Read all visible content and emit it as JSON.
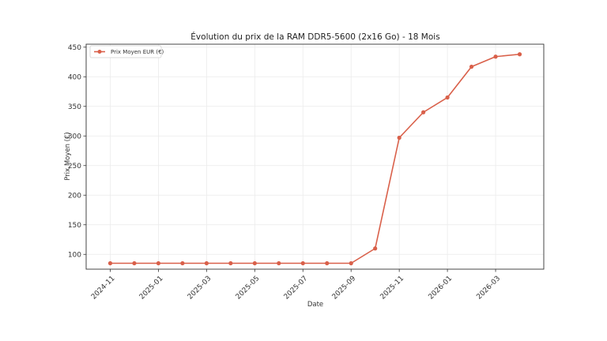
{
  "chart_data": {
    "type": "line",
    "title": "Évolution du prix de la RAM DDR5-5600 (2x16 Go) - 18 Mois",
    "xlabel": "Date",
    "ylabel": "Prix Moyen (€)",
    "ylim": [
      75,
      455
    ],
    "yticks": [
      100,
      150,
      200,
      250,
      300,
      350,
      400,
      450
    ],
    "xlim": [
      -1.0,
      18.0
    ],
    "xtick_indices": [
      0,
      2,
      4,
      6,
      8,
      10,
      12,
      14,
      16
    ],
    "xtick_labels": [
      "2024-11",
      "2025-01",
      "2025-03",
      "2025-05",
      "2025-07",
      "2025-09",
      "2025-11",
      "2026-01",
      "2026-03"
    ],
    "grid": true,
    "legend_position": "top-left",
    "series": [
      {
        "name": "Prix Moyen EUR (€)",
        "color": "#d9604a",
        "x": [
          0,
          1,
          2,
          3,
          4,
          5,
          6,
          7,
          8,
          9,
          10,
          11,
          12,
          13,
          14,
          15,
          16,
          17
        ],
        "values": [
          85,
          85,
          85,
          85,
          85,
          85,
          85,
          85,
          85,
          85,
          85,
          110,
          297,
          340,
          365,
          417,
          434,
          438
        ]
      }
    ]
  }
}
